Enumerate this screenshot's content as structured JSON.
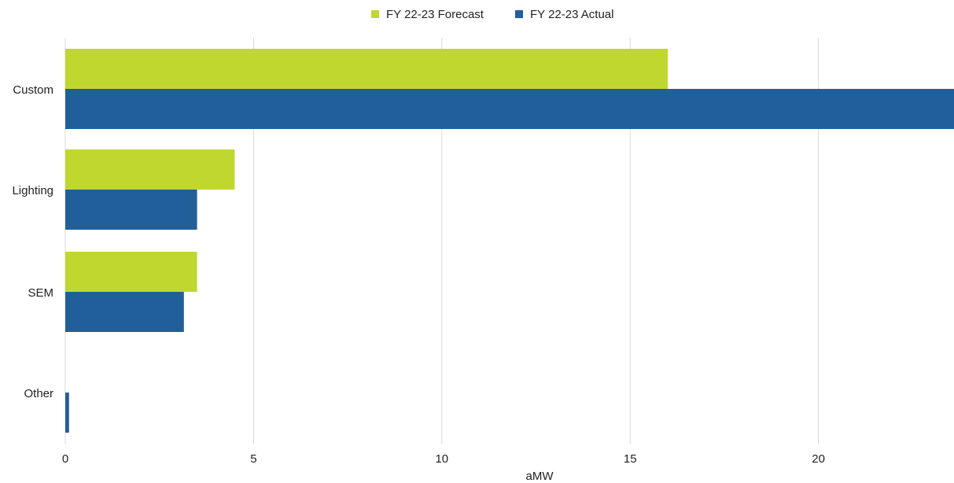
{
  "chart_data": {
    "type": "bar",
    "orientation": "horizontal",
    "categories": [
      "Custom",
      "Lighting",
      "SEM",
      "Other"
    ],
    "series": [
      {
        "name": "FY 22-23 Forecast",
        "color": "#c0d72f",
        "values": [
          16.0,
          4.5,
          3.5,
          0
        ]
      },
      {
        "name": "FY 22-23 Actual",
        "color": "#215f9a",
        "values": [
          23.6,
          3.5,
          3.15,
          0.1
        ]
      }
    ],
    "xlabel": "aMW",
    "xlim": [
      0,
      23.6
    ],
    "xticks": [
      0,
      5,
      10,
      15,
      20
    ],
    "grid": true,
    "legend": "top-center"
  }
}
